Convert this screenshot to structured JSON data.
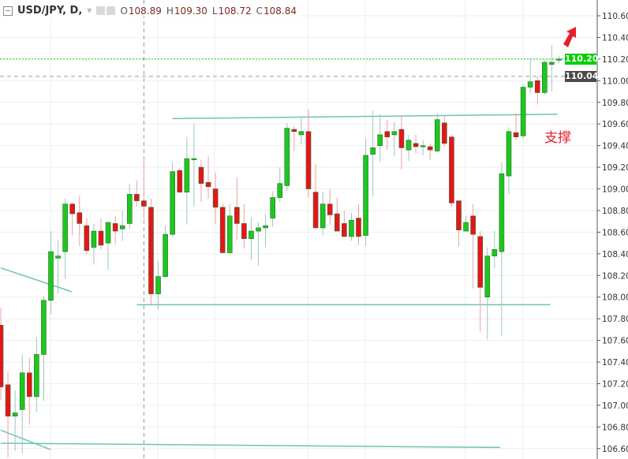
{
  "header": {
    "symbol": "USD/JPY, D,",
    "open_label": "O",
    "open": "108.89",
    "high_label": "H",
    "high": "109.30",
    "low_label": "L",
    "low": "108.72",
    "close_label": "C",
    "close": "108.84"
  },
  "colors": {
    "up": "#1ec71e",
    "down": "#e8141a",
    "trendline": "#6fc2b4",
    "grid": "#eeeeee",
    "last_price": "#00d000",
    "prev_close": "#4a4a4a",
    "arrow": "#e5202a"
  },
  "annotation_text": "支撑",
  "price_tags": {
    "last": "110.20",
    "prev": "110.04"
  },
  "chart_data": {
    "type": "candlestick",
    "title": "",
    "ylim": [
      106.55,
      110.7
    ],
    "y_ticks": [
      "110.60",
      "110.40",
      "110.20",
      "110.00",
      "109.80",
      "109.60",
      "109.40",
      "109.20",
      "109.00",
      "108.80",
      "108.60",
      "108.40",
      "108.20",
      "108.00",
      "107.80",
      "107.60",
      "107.40",
      "107.20",
      "107.00",
      "106.80",
      "106.60"
    ],
    "grid": true,
    "crosshair_candle": 20,
    "candles_ohlc": [
      [
        107.74,
        107.9,
        107.05,
        107.17
      ],
      [
        107.19,
        107.31,
        106.52,
        106.9
      ],
      [
        106.9,
        107.14,
        106.58,
        106.93
      ],
      [
        106.96,
        107.47,
        106.55,
        107.3
      ],
      [
        107.3,
        107.44,
        106.82,
        107.08
      ],
      [
        107.08,
        107.63,
        106.94,
        107.47
      ],
      [
        107.47,
        108.01,
        107.04,
        107.97
      ],
      [
        107.97,
        108.61,
        107.84,
        108.42
      ],
      [
        108.36,
        108.53,
        108.03,
        108.38
      ],
      [
        108.42,
        108.91,
        108.17,
        108.86
      ],
      [
        108.86,
        108.87,
        108.57,
        108.77
      ],
      [
        108.78,
        108.94,
        108.47,
        108.68
      ],
      [
        108.66,
        108.73,
        108.39,
        108.43
      ],
      [
        108.46,
        108.68,
        108.3,
        108.61
      ],
      [
        108.61,
        108.73,
        108.44,
        108.48
      ],
      [
        108.5,
        108.7,
        108.25,
        108.69
      ],
      [
        108.68,
        108.75,
        108.49,
        108.61
      ],
      [
        108.63,
        108.8,
        108.52,
        108.66
      ],
      [
        108.68,
        109.05,
        108.63,
        108.95
      ],
      [
        108.95,
        109.08,
        108.84,
        108.89
      ],
      [
        108.89,
        109.3,
        108.72,
        108.84
      ],
      [
        108.83,
        108.91,
        107.93,
        108.03
      ],
      [
        108.03,
        108.33,
        107.89,
        108.19
      ],
      [
        108.19,
        108.66,
        108.18,
        108.58
      ],
      [
        108.58,
        109.25,
        108.56,
        109.16
      ],
      [
        109.17,
        109.19,
        108.97,
        108.97
      ],
      [
        108.97,
        109.48,
        108.67,
        109.28
      ],
      [
        109.28,
        109.6,
        108.84,
        109.28
      ],
      [
        109.2,
        109.27,
        108.88,
        109.05
      ],
      [
        109.06,
        109.3,
        108.91,
        109.02
      ],
      [
        109.0,
        109.15,
        108.68,
        108.83
      ],
      [
        108.83,
        108.87,
        108.44,
        108.41
      ],
      [
        108.41,
        108.86,
        108.4,
        108.75
      ],
      [
        108.83,
        109.11,
        108.53,
        108.68
      ],
      [
        108.68,
        108.86,
        108.45,
        108.54
      ],
      [
        108.54,
        108.74,
        108.34,
        108.61
      ],
      [
        108.61,
        108.69,
        108.29,
        108.64
      ],
      [
        108.64,
        108.77,
        108.46,
        108.66
      ],
      [
        108.73,
        108.98,
        108.65,
        108.92
      ],
      [
        108.92,
        109.2,
        108.88,
        109.05
      ],
      [
        109.03,
        109.61,
        108.98,
        109.56
      ],
      [
        109.55,
        109.58,
        109.35,
        109.53
      ],
      [
        109.5,
        109.67,
        109.41,
        109.53
      ],
      [
        109.53,
        109.73,
        108.92,
        109.0
      ],
      [
        108.97,
        109.23,
        108.63,
        108.64
      ],
      [
        108.64,
        108.97,
        108.57,
        108.86
      ],
      [
        108.86,
        109.0,
        108.67,
        108.76
      ],
      [
        108.77,
        108.92,
        108.64,
        108.61
      ],
      [
        108.68,
        108.8,
        108.57,
        108.56
      ],
      [
        108.56,
        108.78,
        108.52,
        108.71
      ],
      [
        108.73,
        108.86,
        108.48,
        108.56
      ],
      [
        108.57,
        109.46,
        108.47,
        109.31
      ],
      [
        109.32,
        109.72,
        108.93,
        109.38
      ],
      [
        109.4,
        109.69,
        109.25,
        109.5
      ],
      [
        109.53,
        109.64,
        109.36,
        109.48
      ],
      [
        109.5,
        109.62,
        109.3,
        109.53
      ],
      [
        109.55,
        109.67,
        109.18,
        109.38
      ],
      [
        109.36,
        109.5,
        109.26,
        109.45
      ],
      [
        109.42,
        109.5,
        109.33,
        109.39
      ],
      [
        109.4,
        109.45,
        109.31,
        109.4
      ],
      [
        109.39,
        109.42,
        109.27,
        109.36
      ],
      [
        109.35,
        109.7,
        109.34,
        109.64
      ],
      [
        109.61,
        109.67,
        109.39,
        109.42
      ],
      [
        109.48,
        109.5,
        108.83,
        108.87
      ],
      [
        108.89,
        108.89,
        108.47,
        108.62
      ],
      [
        108.61,
        108.75,
        108.61,
        108.69
      ],
      [
        108.75,
        108.86,
        108.08,
        108.58
      ],
      [
        108.56,
        108.61,
        107.68,
        108.09
      ],
      [
        108.0,
        108.46,
        107.61,
        108.38
      ],
      [
        108.38,
        108.61,
        108.27,
        108.44
      ],
      [
        108.42,
        109.25,
        107.64,
        109.14
      ],
      [
        109.12,
        109.57,
        108.95,
        109.53
      ],
      [
        109.52,
        109.7,
        109.45,
        109.48
      ],
      [
        109.49,
        109.97,
        109.46,
        109.94
      ],
      [
        109.94,
        110.21,
        109.88,
        109.99
      ],
      [
        110.0,
        110.04,
        109.78,
        109.89
      ],
      [
        109.89,
        110.19,
        109.87,
        110.17
      ],
      [
        110.15,
        110.33,
        109.9,
        110.17
      ],
      [
        110.19,
        110.23,
        110.16,
        110.2
      ]
    ],
    "trendlines": [
      {
        "from": [
          24.0,
          109.65
        ],
        "to": [
          77.8,
          109.69
        ]
      },
      {
        "from": [
          19.0,
          107.93
        ],
        "to": [
          76.8,
          107.93
        ]
      },
      {
        "from": [
          0,
          108.27
        ],
        "to": [
          9.9,
          108.05
        ]
      },
      {
        "from": [
          0,
          106.65
        ],
        "to": [
          69.8,
          106.61
        ]
      },
      {
        "from": [
          0,
          106.77
        ],
        "to": [
          7.0,
          106.59
        ]
      }
    ],
    "last_price_line": 110.2,
    "prev_close_line": 110.04
  }
}
